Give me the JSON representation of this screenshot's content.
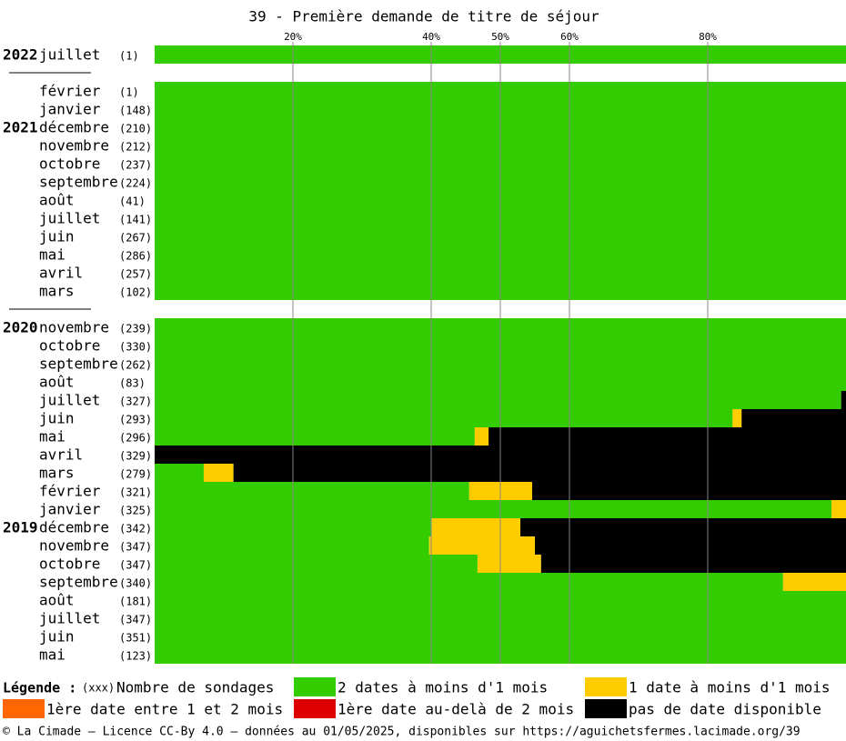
{
  "chart_data": {
    "type": "stacked-barh",
    "title": "39 - Première demande de titre de séjour",
    "xlim": [
      0,
      100
    ],
    "xticks": [
      {
        "value": 20,
        "label": "20%"
      },
      {
        "value": 40,
        "label": "40%"
      },
      {
        "value": 50,
        "label": "50%"
      },
      {
        "value": 60,
        "label": "60%"
      },
      {
        "value": 80,
        "label": "80%"
      }
    ],
    "grid": true,
    "categories": [
      "juillet",
      null,
      "février",
      "janvier",
      "décembre",
      "novembre",
      "octobre",
      "septembre",
      "août",
      "juillet",
      "juin",
      "mai",
      "avril",
      "mars",
      null,
      "novembre",
      "octobre",
      "septembre",
      "août",
      "juillet",
      "juin",
      "mai",
      "avril",
      "mars",
      "février",
      "janvier",
      "décembre",
      "novembre",
      "octobre",
      "septembre",
      "août",
      "juillet",
      "juin",
      "mai"
    ],
    "years": [
      "2022",
      null,
      null,
      null,
      "2021",
      null,
      null,
      null,
      null,
      null,
      null,
      null,
      null,
      null,
      null,
      "2020",
      null,
      null,
      null,
      null,
      null,
      null,
      null,
      null,
      null,
      null,
      "2019",
      null,
      null,
      null,
      null,
      null,
      null,
      null
    ],
    "count_labels": [
      "(1)",
      null,
      "(1)",
      "(148)",
      "(210)",
      "(212)",
      "(237)",
      "(224)",
      "(41)",
      "(141)",
      "(267)",
      "(286)",
      "(257)",
      "(102)",
      null,
      "(239)",
      "(330)",
      "(262)",
      "(83)",
      "(327)",
      "(293)",
      "(296)",
      "(329)",
      "(279)",
      "(321)",
      "(325)",
      "(342)",
      "(347)",
      "(347)",
      "(340)",
      "(181)",
      "(347)",
      "(351)",
      "(123)"
    ],
    "series": [
      {
        "name": "2 dates à moins d'1 mois",
        "color": "#33cc00",
        "values": [
          100,
          null,
          100,
          100,
          100,
          100,
          100,
          100,
          100,
          100,
          100,
          100,
          100,
          100,
          null,
          100,
          100,
          100,
          100,
          99.3,
          83.6,
          46.3,
          0,
          7.1,
          45.5,
          97.9,
          40.1,
          39.7,
          46.7,
          90.9,
          100,
          100,
          100,
          100
        ]
      },
      {
        "name": "1 date à moins d'1 mois",
        "color": "#ffcc00",
        "values": [
          0,
          null,
          0,
          0,
          0,
          0,
          0,
          0,
          0,
          0,
          0,
          0,
          0,
          0,
          null,
          0,
          0,
          0,
          0,
          0,
          1.3,
          2.0,
          0,
          4.3,
          9.1,
          2.1,
          12.8,
          15.3,
          9.2,
          9.1,
          0,
          0,
          0,
          0
        ]
      },
      {
        "name": "1ère date entre 1 et 2 mois",
        "color": "#ff6600",
        "values": [
          0,
          null,
          0,
          0,
          0,
          0,
          0,
          0,
          0,
          0,
          0,
          0,
          0,
          0,
          null,
          0,
          0,
          0,
          0,
          0,
          0,
          0,
          0,
          0,
          0,
          0,
          0,
          0,
          0,
          0,
          0,
          0,
          0,
          0
        ]
      },
      {
        "name": "1ère date au-delà de 2 mois",
        "color": "#dd0000",
        "values": [
          0,
          null,
          0,
          0,
          0,
          0,
          0,
          0,
          0,
          0,
          0,
          0,
          0,
          0,
          null,
          0,
          0,
          0,
          0,
          0,
          0,
          0,
          0,
          0,
          0,
          0,
          0,
          0,
          0,
          0,
          0,
          0,
          0,
          0
        ]
      },
      {
        "name": "pas de date disponible",
        "color": "#000000",
        "values": [
          0,
          null,
          0,
          0,
          0,
          0,
          0,
          0,
          0,
          0,
          0,
          0,
          0,
          0,
          null,
          0,
          0,
          0,
          0,
          0.7,
          15.1,
          51.7,
          100,
          88.6,
          45.4,
          0,
          47.1,
          45.0,
          44.1,
          0,
          0,
          0,
          0,
          0
        ]
      }
    ],
    "legend_title": "Légende :",
    "count_legend_key": "(xxx)",
    "count_legend_label": "Nombre de sondages",
    "footer": "© La Cimade – Licence CC-By 4.0 – données au 01/05/2025, disponibles sur https://aguichetsfermes.lacimade.org/39"
  }
}
